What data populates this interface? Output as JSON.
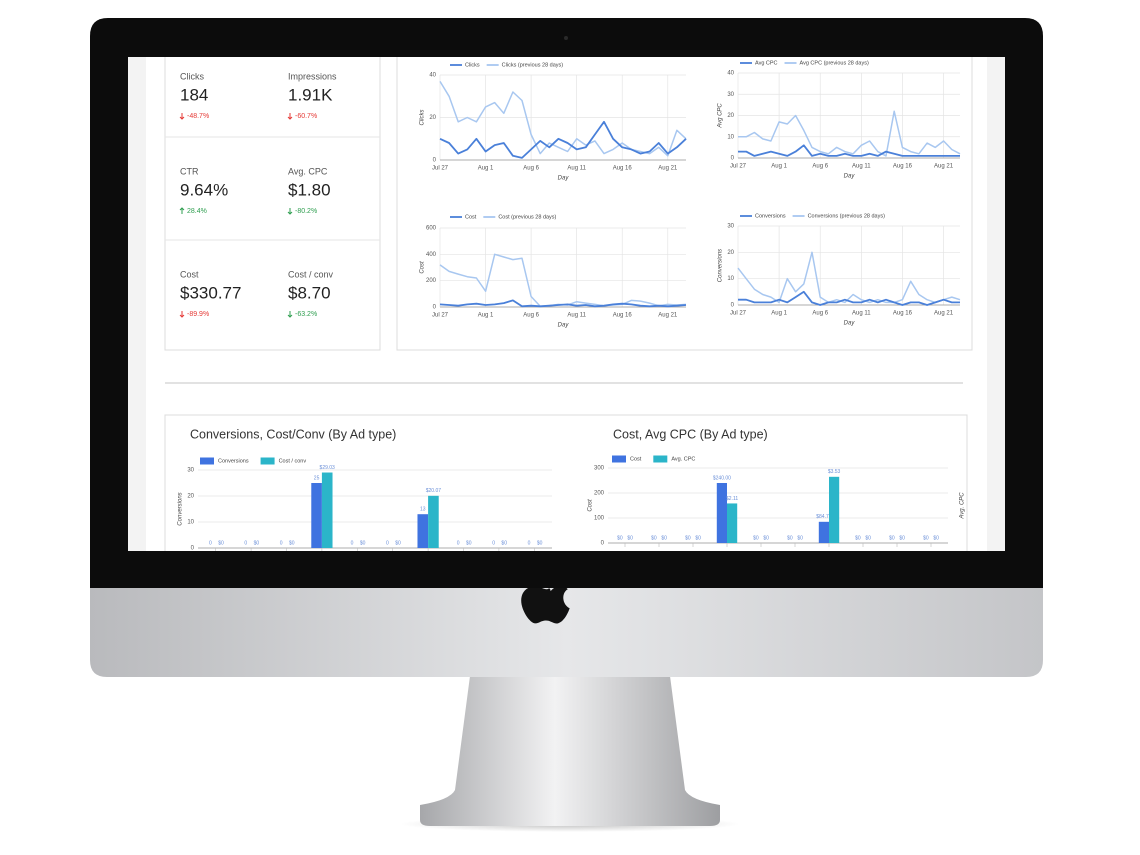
{
  "kpis": [
    {
      "label": "Clicks",
      "value": "184",
      "change": "-48.7%",
      "direction": "down",
      "color": "#e53935"
    },
    {
      "label": "Impressions",
      "value": "1.91K",
      "change": "-60.7%",
      "direction": "down",
      "color": "#e53935"
    },
    {
      "label": "CTR",
      "value": "9.64%",
      "change": "28.4%",
      "direction": "up",
      "color": "#2e9e4f"
    },
    {
      "label": "Avg. CPC",
      "value": "$1.80",
      "change": "-80.2%",
      "direction": "down",
      "color": "#2e9e4f"
    },
    {
      "label": "Cost",
      "value": "$330.77",
      "change": "-89.9%",
      "direction": "down",
      "color": "#e53935"
    },
    {
      "label": "Cost / conv",
      "value": "$8.70",
      "change": "-63.2%",
      "direction": "down",
      "color": "#2e9e4f"
    }
  ],
  "chart_data": [
    {
      "type": "line",
      "y_label": "Clicks",
      "x_label": "Day",
      "grid": true,
      "categories": [
        "Jul 27",
        null,
        null,
        null,
        null,
        "Aug 1",
        null,
        null,
        null,
        null,
        "Aug 6",
        null,
        null,
        null,
        null,
        "Aug 11",
        null,
        null,
        null,
        null,
        "Aug 16",
        null,
        null,
        null,
        null,
        "Aug 21",
        null,
        null
      ],
      "ylim": [
        0,
        40
      ],
      "yticks": [
        0,
        20,
        40
      ],
      "series": [
        {
          "name": "Clicks",
          "color": "#4a80d9",
          "values": [
            10,
            8,
            3,
            5,
            10,
            4,
            7,
            8,
            2,
            1,
            5,
            9,
            6,
            10,
            8,
            5,
            6,
            12,
            18,
            10,
            6,
            5,
            3,
            4,
            8,
            3,
            6,
            10
          ]
        },
        {
          "name": "Clicks (previous 28 days)",
          "color": "#a8c7f0",
          "values": [
            37,
            30,
            18,
            20,
            18,
            25,
            27,
            22,
            32,
            28,
            12,
            3,
            8,
            6,
            4,
            10,
            7,
            9,
            3,
            5,
            8,
            5,
            4,
            3,
            6,
            2,
            14,
            10
          ]
        }
      ]
    },
    {
      "type": "line",
      "y_label": "Avg CPC",
      "x_label": "Day",
      "grid": true,
      "categories": [
        "Jul 27",
        null,
        null,
        null,
        null,
        "Aug 1",
        null,
        null,
        null,
        null,
        "Aug 6",
        null,
        null,
        null,
        null,
        "Aug 11",
        null,
        null,
        null,
        null,
        "Aug 16",
        null,
        null,
        null,
        null,
        "Aug 21",
        null,
        null
      ],
      "ylim": [
        0,
        40
      ],
      "yticks": [
        0,
        10,
        20,
        30,
        40
      ],
      "series": [
        {
          "name": "Avg CPC",
          "color": "#4a80d9",
          "values": [
            3,
            3,
            1,
            2,
            3,
            2,
            1,
            3,
            6,
            1,
            2,
            1,
            1,
            2,
            1,
            1,
            2,
            1,
            3,
            2,
            1,
            1,
            1,
            1,
            1,
            1,
            1,
            1
          ]
        },
        {
          "name": "Avg CPC (previous 28 days)",
          "color": "#a8c7f0",
          "values": [
            10,
            10,
            12,
            9,
            8,
            17,
            16,
            20,
            13,
            5,
            3,
            2,
            5,
            3,
            2,
            6,
            8,
            3,
            1,
            22,
            5,
            3,
            2,
            7,
            5,
            8,
            4,
            2
          ]
        }
      ]
    },
    {
      "type": "line",
      "y_label": "Cost",
      "x_label": "Day",
      "grid": true,
      "categories": [
        "Jul 27",
        null,
        null,
        null,
        null,
        "Aug 1",
        null,
        null,
        null,
        null,
        "Aug 6",
        null,
        null,
        null,
        null,
        "Aug 11",
        null,
        null,
        null,
        null,
        "Aug 16",
        null,
        null,
        null,
        null,
        "Aug 21",
        null,
        null
      ],
      "ylim": [
        0,
        600
      ],
      "yticks": [
        0,
        200,
        400,
        600
      ],
      "series": [
        {
          "name": "Cost",
          "color": "#4a80d9",
          "values": [
            20,
            15,
            10,
            20,
            25,
            15,
            20,
            30,
            50,
            5,
            10,
            5,
            10,
            15,
            20,
            10,
            15,
            5,
            10,
            20,
            25,
            20,
            10,
            5,
            10,
            5,
            10,
            15
          ]
        },
        {
          "name": "Cost (previous 28 days)",
          "color": "#a8c7f0",
          "values": [
            320,
            270,
            250,
            230,
            220,
            120,
            400,
            380,
            360,
            370,
            80,
            5,
            10,
            20,
            15,
            40,
            30,
            20,
            10,
            15,
            20,
            50,
            45,
            30,
            10,
            20,
            15,
            20
          ]
        }
      ]
    },
    {
      "type": "line",
      "y_label": "Conversions",
      "x_label": "Day",
      "grid": true,
      "categories": [
        "Jul 27",
        null,
        null,
        null,
        null,
        "Aug 1",
        null,
        null,
        null,
        null,
        "Aug 6",
        null,
        null,
        null,
        null,
        "Aug 11",
        null,
        null,
        null,
        null,
        "Aug 16",
        null,
        null,
        null,
        null,
        "Aug 21",
        null,
        null
      ],
      "ylim": [
        0,
        30
      ],
      "yticks": [
        0,
        10,
        20,
        30
      ],
      "series": [
        {
          "name": "Conversions",
          "color": "#4a80d9",
          "values": [
            2,
            2,
            1,
            1,
            1,
            2,
            1,
            3,
            5,
            1,
            0,
            1,
            1,
            2,
            1,
            1,
            2,
            1,
            2,
            1,
            0,
            1,
            1,
            0,
            1,
            2,
            1,
            1
          ]
        },
        {
          "name": "Conversions (previous 28 days)",
          "color": "#a8c7f0",
          "values": [
            14,
            10,
            6,
            4,
            3,
            1,
            10,
            5,
            8,
            20,
            3,
            1,
            2,
            1,
            4,
            2,
            1,
            2,
            1,
            1,
            2,
            9,
            4,
            2,
            1,
            2,
            3,
            2
          ]
        }
      ]
    },
    {
      "type": "bar",
      "title": "Conversions, Cost/Conv (By Ad type)",
      "y_label": "Conversions",
      "grid": true,
      "categories": [
        null,
        null,
        null,
        null,
        null,
        null,
        null,
        null,
        null,
        null
      ],
      "ylim": [
        0,
        30
      ],
      "yticks": [
        0,
        10,
        20,
        30
      ],
      "series": [
        {
          "name": "Conversions",
          "color": "#3f73e0",
          "values": [
            0,
            0,
            0,
            25,
            0,
            0,
            13,
            0,
            0,
            0
          ]
        },
        {
          "name": "Cost / conv",
          "color": "#2bb5c9",
          "values": [
            0,
            0,
            0,
            29.03,
            0,
            0,
            20.07,
            0,
            0,
            0
          ],
          "value_labels": [
            "$0",
            "$0",
            "$0",
            "$29.03",
            "$0",
            "$0",
            "$20.07",
            "$0",
            "$0",
            "$0"
          ]
        }
      ]
    },
    {
      "type": "bar",
      "title": "Cost, Avg CPC (By Ad type)",
      "y_label": "Cost",
      "y2_label": "Avg. CPC",
      "grid": true,
      "categories": [
        null,
        null,
        null,
        null,
        null,
        null,
        null,
        null,
        null,
        null
      ],
      "ylim": [
        0,
        300
      ],
      "yticks": [
        0,
        100,
        200,
        300
      ],
      "y2lim": [
        0,
        4
      ],
      "series": [
        {
          "name": "Cost",
          "color": "#3f73e0",
          "values": [
            0,
            0,
            0,
            240,
            0,
            0,
            84.76,
            0,
            0,
            0
          ],
          "value_labels": [
            "$0",
            "$0",
            "$0",
            "$240.00",
            "$0",
            "$0",
            "$84.76",
            "$0",
            "$0",
            "$0"
          ]
        },
        {
          "name": "Avg. CPC",
          "color": "#2bb5c9",
          "axis": "y2",
          "values": [
            0,
            0,
            0,
            2.11,
            0,
            0,
            3.53,
            0,
            0,
            0
          ],
          "value_labels": [
            "$0",
            "$0",
            "$0",
            "$2.11",
            "$0",
            "$0",
            "$3.53",
            "$0",
            "$0",
            "$0"
          ]
        }
      ]
    }
  ]
}
